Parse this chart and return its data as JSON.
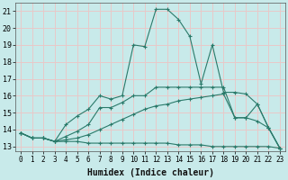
{
  "xlabel": "Humidex (Indice chaleur)",
  "xlim": [
    -0.5,
    23.5
  ],
  "ylim": [
    12.7,
    21.5
  ],
  "yticks": [
    13,
    14,
    15,
    16,
    17,
    18,
    19,
    20,
    21
  ],
  "xticks": [
    0,
    1,
    2,
    3,
    4,
    5,
    6,
    7,
    8,
    9,
    10,
    11,
    12,
    13,
    14,
    15,
    16,
    17,
    18,
    19,
    20,
    21,
    22,
    23
  ],
  "bg_color": "#c8eaea",
  "grid_color": "#e8c8c8",
  "line_color": "#2a7a6a",
  "lines": [
    {
      "x": [
        0,
        1,
        2,
        3,
        4,
        5,
        6,
        7,
        8,
        9,
        10,
        11,
        12,
        13,
        14,
        15,
        16,
        17,
        18,
        19,
        20,
        21,
        22,
        23
      ],
      "y": [
        13.8,
        13.5,
        13.5,
        13.3,
        13.3,
        13.3,
        13.2,
        13.2,
        13.2,
        13.2,
        13.2,
        13.2,
        13.2,
        13.2,
        13.1,
        13.1,
        13.1,
        13.0,
        13.0,
        13.0,
        13.0,
        13.0,
        13.0,
        12.9
      ]
    },
    {
      "x": [
        0,
        1,
        2,
        3,
        4,
        5,
        6,
        7,
        8,
        9,
        10,
        11,
        12,
        13,
        14,
        15,
        16,
        17,
        18,
        19,
        20,
        21,
        22,
        23
      ],
      "y": [
        13.8,
        13.5,
        13.5,
        13.3,
        13.4,
        13.5,
        13.7,
        14.0,
        14.3,
        14.6,
        14.9,
        15.2,
        15.4,
        15.5,
        15.7,
        15.8,
        15.9,
        16.0,
        16.1,
        14.7,
        14.7,
        14.5,
        14.1,
        12.9
      ]
    },
    {
      "x": [
        0,
        1,
        2,
        3,
        4,
        5,
        6,
        7,
        8,
        9,
        10,
        11,
        12,
        13,
        14,
        15,
        16,
        17,
        18,
        19,
        20,
        21,
        22,
        23
      ],
      "y": [
        13.8,
        13.5,
        13.5,
        13.3,
        13.6,
        13.9,
        14.3,
        15.3,
        15.3,
        15.6,
        16.0,
        16.0,
        16.5,
        16.5,
        16.5,
        16.5,
        16.5,
        16.5,
        16.5,
        14.7,
        14.7,
        15.5,
        14.1,
        12.9
      ]
    },
    {
      "x": [
        0,
        1,
        2,
        3,
        4,
        5,
        6,
        7,
        8,
        9,
        10,
        11,
        12,
        13,
        14,
        15,
        16,
        17,
        18,
        19,
        20,
        21,
        22,
        23
      ],
      "y": [
        13.8,
        13.5,
        13.5,
        13.3,
        14.3,
        14.8,
        15.2,
        16.0,
        15.8,
        16.0,
        19.0,
        18.9,
        21.1,
        21.1,
        20.5,
        19.5,
        16.7,
        19.0,
        16.2,
        16.2,
        16.1,
        15.5,
        14.1,
        12.9
      ]
    }
  ]
}
